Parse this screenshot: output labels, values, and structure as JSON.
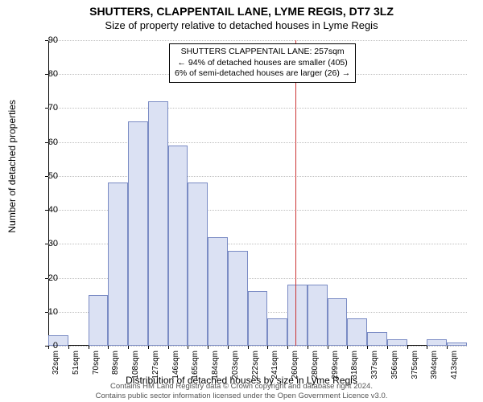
{
  "title": "SHUTTERS, CLAPPENTAIL LANE, LYME REGIS, DT7 3LZ",
  "subtitle": "Size of property relative to detached houses in Lyme Regis",
  "ylabel": "Number of detached properties",
  "xlabel": "Distribution of detached houses by size in Lyme Regis",
  "footer_line1": "Contains HM Land Registry data © Crown copyright and database right 2024.",
  "footer_line2": "Contains public sector information licensed under the Open Government Licence v3.0.",
  "chart": {
    "type": "histogram",
    "ylim": [
      0,
      90
    ],
    "yticks": [
      0,
      10,
      20,
      30,
      40,
      50,
      60,
      70,
      80,
      90
    ],
    "xtick_labels": [
      "32sqm",
      "51sqm",
      "70sqm",
      "89sqm",
      "108sqm",
      "127sqm",
      "146sqm",
      "165sqm",
      "184sqm",
      "203sqm",
      "222sqm",
      "241sqm",
      "260sqm",
      "280sqm",
      "299sqm",
      "318sqm",
      "337sqm",
      "356sqm",
      "375sqm",
      "394sqm",
      "413sqm"
    ],
    "bar_values": [
      3,
      0,
      15,
      48,
      66,
      72,
      59,
      48,
      32,
      28,
      16,
      8,
      18,
      18,
      14,
      8,
      4,
      2,
      0,
      2,
      1
    ],
    "bar_color": "#dbe1f3",
    "bar_border": "#7a8bc4",
    "grid_color": "#bfbfbf",
    "background_color": "#ffffff",
    "marker_color": "#cc3333",
    "marker_value_sqm": 257,
    "xmin_sqm": 32,
    "xmax_sqm": 413,
    "annotation": {
      "line1": "SHUTTERS CLAPPENTAIL LANE: 257sqm",
      "line2": "← 94% of detached houses are smaller (405)",
      "line3": "6% of semi-detached houses are larger (26) →"
    },
    "title_fontsize": 14,
    "subtitle_fontsize": 13,
    "label_fontsize": 12,
    "tick_fontsize": 11
  }
}
